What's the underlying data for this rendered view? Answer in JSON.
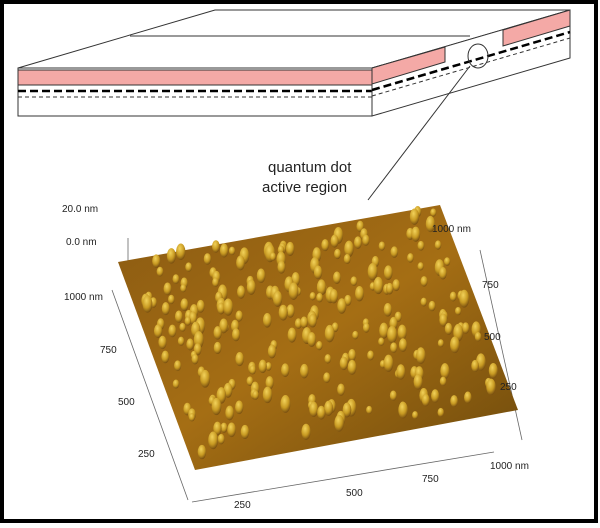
{
  "callout": {
    "label_lines": [
      "quantum dot",
      "active region"
    ]
  },
  "afm": {
    "z_axis": [
      "20.0 nm",
      "0.0 nm"
    ],
    "left_axis": [
      "1000 nm",
      "750",
      "500",
      "250"
    ],
    "right_axis": [
      "1000 nm",
      "750",
      "500",
      "250"
    ],
    "bottom_axis": [
      "250",
      "500",
      "750",
      "1000 nm"
    ]
  }
}
